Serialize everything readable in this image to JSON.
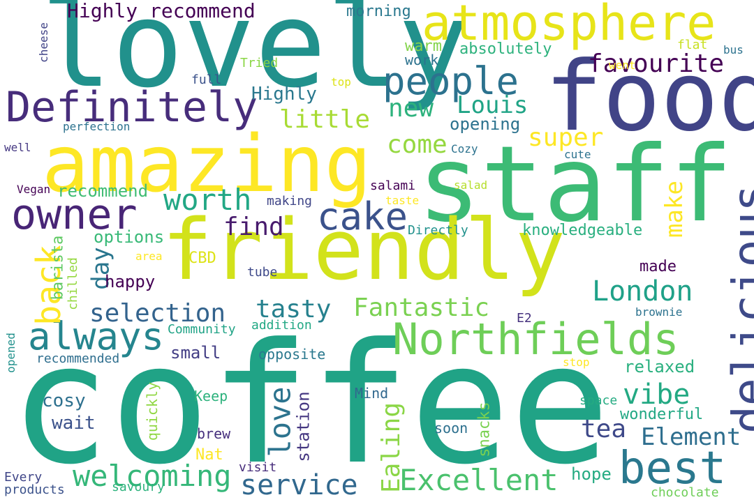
{
  "colors": {
    "background": "#ffffff",
    "palette": [
      "#440154",
      "#482677",
      "#404788",
      "#33638d",
      "#287d8e",
      "#1f968b",
      "#29af7f",
      "#55c667",
      "#95d840",
      "#dce319",
      "#fde725"
    ]
  },
  "words": [
    {
      "text": "coffee",
      "color": "#20a386"
    },
    {
      "text": "lovely",
      "color": "#21918c"
    },
    {
      "text": "staff",
      "color": "#3cbb75"
    },
    {
      "text": "friendly",
      "color": "#d2e21b"
    },
    {
      "text": "amazing",
      "color": "#fde725"
    },
    {
      "text": "food",
      "color": "#414487"
    },
    {
      "text": "atmosphere",
      "color": "#e7e419"
    },
    {
      "text": "Definitely",
      "color": "#472d7b"
    },
    {
      "text": "Northfields",
      "color": "#6ece58"
    },
    {
      "text": "delicious",
      "color": "#3e4a89"
    },
    {
      "text": "best",
      "color": "#2a788e"
    },
    {
      "text": "owner",
      "color": "#482576"
    },
    {
      "text": "always",
      "color": "#25858e"
    },
    {
      "text": "people",
      "color": "#2c728e"
    },
    {
      "text": "cake",
      "color": "#3b528b"
    },
    {
      "text": "Excellent",
      "color": "#4ac16d"
    },
    {
      "text": "welcoming",
      "color": "#35b779"
    },
    {
      "text": "London",
      "color": "#1fa188"
    },
    {
      "text": "service",
      "color": "#31688e"
    },
    {
      "text": "favourite",
      "color": "#440154"
    },
    {
      "text": "Highly recommend",
      "color": "#440154"
    },
    {
      "text": "worth",
      "color": "#22a785"
    },
    {
      "text": "back",
      "color": "#fde725"
    },
    {
      "text": "love",
      "color": "#2c738e"
    },
    {
      "text": "Fantastic",
      "color": "#7ad151"
    },
    {
      "text": "selection",
      "color": "#33638d"
    },
    {
      "text": "Element",
      "color": "#2e6e8e"
    },
    {
      "text": "tasty",
      "color": "#26818e"
    },
    {
      "text": "vibe",
      "color": "#23a983"
    },
    {
      "text": "tea",
      "color": "#3e4989"
    },
    {
      "text": "Ealing",
      "color": "#8bd646"
    },
    {
      "text": "little",
      "color": "#a8db34"
    },
    {
      "text": "new",
      "color": "#2db27d"
    },
    {
      "text": "Louis",
      "color": "#20a486"
    },
    {
      "text": "come",
      "color": "#95d840"
    },
    {
      "text": "find",
      "color": "#481b6d"
    },
    {
      "text": "day",
      "color": "#2a768e"
    },
    {
      "text": "super",
      "color": "#fde725"
    },
    {
      "text": "make",
      "color": "#fde725"
    },
    {
      "text": "Highly",
      "color": "#2a788e"
    },
    {
      "text": "opening",
      "color": "#2c728e"
    },
    {
      "text": "recommend",
      "color": "#3fbc73"
    },
    {
      "text": "options",
      "color": "#38b977"
    },
    {
      "text": "happy",
      "color": "#440154"
    },
    {
      "text": "cosy",
      "color": "#2d708e"
    },
    {
      "text": "wait",
      "color": "#3b528b"
    },
    {
      "text": "small",
      "color": "#433e85"
    },
    {
      "text": "wonderful",
      "color": "#22a884"
    },
    {
      "text": "relaxed",
      "color": "#2ab07f"
    },
    {
      "text": "knowledgeable",
      "color": "#29af7f"
    },
    {
      "text": "made",
      "color": "#440154"
    },
    {
      "text": "barista",
      "color": "#5ec962"
    },
    {
      "text": "station",
      "color": "#453781"
    },
    {
      "text": "warm",
      "color": "#84d44b"
    },
    {
      "text": "work",
      "color": "#2c728e"
    },
    {
      "text": "absolutely",
      "color": "#2db27d"
    },
    {
      "text": "morning",
      "color": "#2a788e"
    },
    {
      "text": "CBD",
      "color": "#dde318"
    },
    {
      "text": "hope",
      "color": "#25ab82"
    },
    {
      "text": "snacks",
      "color": "#7ad151"
    },
    {
      "text": "brew",
      "color": "#46307e"
    },
    {
      "text": "Nat",
      "color": "#fde725"
    },
    {
      "text": "Mind",
      "color": "#31688e"
    },
    {
      "text": "space",
      "color": "#25ab82"
    },
    {
      "text": "soon",
      "color": "#2d708e"
    },
    {
      "text": "quickly",
      "color": "#90d743"
    },
    {
      "text": "Keep",
      "color": "#2db27d"
    },
    {
      "text": "opposite",
      "color": "#2a788e"
    },
    {
      "text": "addition",
      "color": "#22a884"
    },
    {
      "text": "Community",
      "color": "#20a386"
    },
    {
      "text": "recommended",
      "color": "#2e6e8e"
    },
    {
      "text": "opened",
      "color": "#21918c"
    },
    {
      "text": "chilled",
      "color": "#95d840"
    },
    {
      "text": "tube",
      "color": "#3e4989"
    },
    {
      "text": "area",
      "color": "#fde725"
    },
    {
      "text": "Directly",
      "color": "#21918c"
    },
    {
      "text": "taste",
      "color": "#fde725"
    },
    {
      "text": "salami",
      "color": "#440154"
    },
    {
      "text": "salad",
      "color": "#b5de2b"
    },
    {
      "text": "making",
      "color": "#404688"
    },
    {
      "text": "Vegan",
      "color": "#440154"
    },
    {
      "text": "well",
      "color": "#453882"
    },
    {
      "text": "perfection",
      "color": "#2c728e"
    },
    {
      "text": "full",
      "color": "#3b528b"
    },
    {
      "text": "Tried",
      "color": "#8bd646"
    },
    {
      "text": "top",
      "color": "#dde318"
    },
    {
      "text": "cheese",
      "color": "#414487"
    },
    {
      "text": "went",
      "color": "#fde725"
    },
    {
      "text": "flat",
      "color": "#c8e020"
    },
    {
      "text": "bus",
      "color": "#2c728e"
    },
    {
      "text": "Cozy",
      "color": "#2c728e"
    },
    {
      "text": "cute",
      "color": "#2c728e"
    },
    {
      "text": "E2",
      "color": "#46327e"
    },
    {
      "text": "brownie",
      "color": "#2c728e"
    },
    {
      "text": "stop",
      "color": "#fde725"
    },
    {
      "text": "visit",
      "color": "#472d7b"
    },
    {
      "text": "Every",
      "color": "#404688"
    },
    {
      "text": "products",
      "color": "#3b528b"
    },
    {
      "text": "savoury",
      "color": "#2db27d"
    },
    {
      "text": "chocolate",
      "color": "#6ece58"
    }
  ]
}
